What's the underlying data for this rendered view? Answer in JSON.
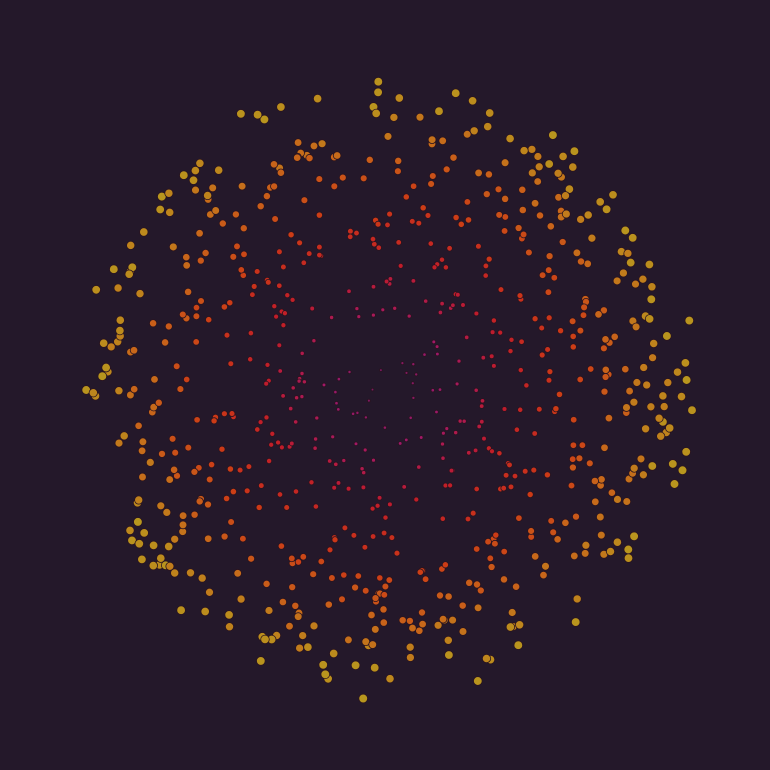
{
  "artwork": {
    "background": "#24182a",
    "palette": [
      "#6e1a5e",
      "#a0186a",
      "#c01c2a",
      "#cc3a16",
      "#c8661a",
      "#b8981e"
    ],
    "stroke": "#2a1420",
    "dot_count": 720,
    "arms": 11
  }
}
